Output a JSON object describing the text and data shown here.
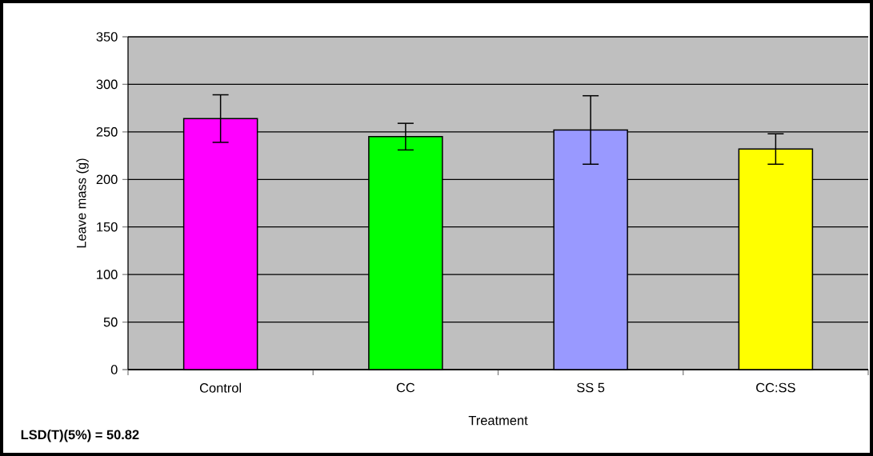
{
  "chart_data": {
    "type": "bar",
    "xlabel": "Treatment",
    "ylabel": "Leave mass (g)",
    "categories": [
      "Control",
      "CC",
      "SS 5",
      "CC:SS"
    ],
    "values": [
      264,
      245,
      252,
      232
    ],
    "errors": [
      25,
      14,
      36,
      16
    ],
    "colors": [
      "#ff00ff",
      "#00ff00",
      "#9999ff",
      "#ffff00"
    ],
    "ylim": [
      0,
      350
    ],
    "yticks": [
      0,
      50,
      100,
      150,
      200,
      250,
      300,
      350
    ],
    "grid": "y",
    "annotations": [
      "LSD(T)(5%) = 50.82"
    ]
  }
}
